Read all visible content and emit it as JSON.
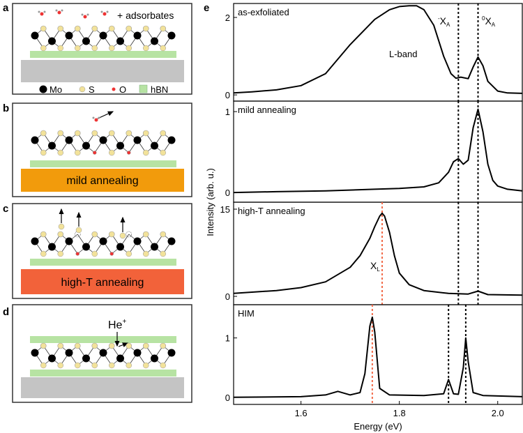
{
  "schematic": {
    "panel_labels": [
      "a",
      "b",
      "c",
      "d",
      "e"
    ],
    "a": {
      "annotation": "+ adsorbates",
      "legend": [
        "Mo",
        "S",
        "O",
        "hBN"
      ]
    },
    "b": {
      "substrate": "mild annealing"
    },
    "c": {
      "substrate": "high-T annealing"
    },
    "d": {
      "ion": "He",
      "ion_charge": "+"
    }
  },
  "figure": {
    "ylabel": "Intensity (arb. u.)"
  },
  "chart_data": [
    {
      "type": "line",
      "title": "as-exfoliated",
      "color": "#000000",
      "xlim": [
        1.463,
        2.05
      ],
      "ylim": [
        -0.16,
        2.36
      ],
      "yticks": [
        0,
        2
      ],
      "x": [
        1.463,
        1.5,
        1.55,
        1.6,
        1.65,
        1.7,
        1.75,
        1.78,
        1.8,
        1.82,
        1.835,
        1.85,
        1.87,
        1.89,
        1.905,
        1.915,
        1.925,
        1.94,
        1.95,
        1.96,
        1.97,
        1.98,
        2.0,
        2.02,
        2.05
      ],
      "values": [
        0.05,
        0.08,
        0.13,
        0.24,
        0.55,
        1.3,
        1.95,
        2.2,
        2.28,
        2.3,
        2.3,
        2.2,
        1.8,
        1.0,
        0.55,
        0.43,
        0.46,
        0.42,
        0.72,
        0.98,
        0.75,
        0.35,
        0.1,
        0.05,
        0.04
      ],
      "vlines": [
        {
          "x": 1.92,
          "color": "#000000"
        },
        {
          "x": 1.96,
          "color": "#000000"
        }
      ],
      "annotations": [
        {
          "text": "L-band"
        },
        {
          "text": "X",
          "sup": "-",
          "sub": "A"
        },
        {
          "text": "X",
          "sup": "0",
          "sub": "A"
        }
      ]
    },
    {
      "type": "line",
      "title": "mild annealing",
      "color": "#000000",
      "xlim": [
        1.463,
        2.05
      ],
      "ylim": [
        -0.12,
        1.13
      ],
      "yticks": [
        0,
        1
      ],
      "x": [
        1.463,
        1.55,
        1.65,
        1.75,
        1.8,
        1.85,
        1.88,
        1.9,
        1.91,
        1.92,
        1.93,
        1.94,
        1.95,
        1.96,
        1.97,
        1.98,
        1.99,
        2.0,
        2.02,
        2.05
      ],
      "values": [
        0.0,
        0.01,
        0.02,
        0.04,
        0.05,
        0.07,
        0.12,
        0.25,
        0.38,
        0.42,
        0.35,
        0.4,
        0.8,
        1.03,
        0.75,
        0.35,
        0.15,
        0.08,
        0.04,
        0.02
      ],
      "vlines": [
        {
          "x": 1.92,
          "color": "#000000"
        },
        {
          "x": 1.96,
          "color": "#000000"
        }
      ]
    },
    {
      "type": "line",
      "title": "high-T annealing",
      "color": "#000000",
      "xlim": [
        1.463,
        2.05
      ],
      "ylim": [
        -1.44,
        16.2
      ],
      "yticks": [
        0,
        15
      ],
      "x": [
        1.463,
        1.55,
        1.6,
        1.65,
        1.7,
        1.72,
        1.74,
        1.75,
        1.76,
        1.765,
        1.77,
        1.78,
        1.79,
        1.8,
        1.82,
        1.85,
        1.9,
        1.94,
        1.96,
        1.98,
        2.05
      ],
      "values": [
        0.5,
        1.0,
        1.5,
        2.5,
        5,
        7,
        10,
        12,
        13.8,
        14.3,
        13.8,
        11,
        7,
        4,
        2,
        1,
        0.5,
        0.4,
        0.9,
        0.3,
        0.2
      ],
      "vlines": [
        {
          "x": 1.765,
          "color": "#f26b4a"
        },
        {
          "x": 1.92,
          "color": "#000000"
        },
        {
          "x": 1.96,
          "color": "#000000"
        }
      ],
      "annotations": [
        {
          "text": "X",
          "sub": "L"
        }
      ]
    },
    {
      "type": "line",
      "title": "HIM",
      "color": "#000000",
      "xlim": [
        1.463,
        2.05
      ],
      "ylim": [
        -0.12,
        1.56
      ],
      "yticks": [
        0,
        1
      ],
      "xticks": [
        1.6,
        1.8,
        {
          "value": 2,
          "label": "2.0"
        }
      ],
      "xlabel": "Energy (eV)",
      "x": [
        1.463,
        1.6,
        1.65,
        1.675,
        1.7,
        1.72,
        1.73,
        1.74,
        1.745,
        1.75,
        1.76,
        1.78,
        1.85,
        1.89,
        1.9,
        1.91,
        1.92,
        1.93,
        1.935,
        1.94,
        1.95,
        1.97,
        2.05
      ],
      "values": [
        0.0,
        0.01,
        0.04,
        0.1,
        0.04,
        0.08,
        0.4,
        1.2,
        1.35,
        1.1,
        0.15,
        0.04,
        0.03,
        0.06,
        0.3,
        0.06,
        0.05,
        0.5,
        1.0,
        0.6,
        0.08,
        0.03,
        0.01
      ],
      "vlines": [
        {
          "x": 1.745,
          "color": "#f26b4a"
        },
        {
          "x": 1.9,
          "color": "#000000"
        },
        {
          "x": 1.935,
          "color": "#000000"
        }
      ]
    }
  ]
}
